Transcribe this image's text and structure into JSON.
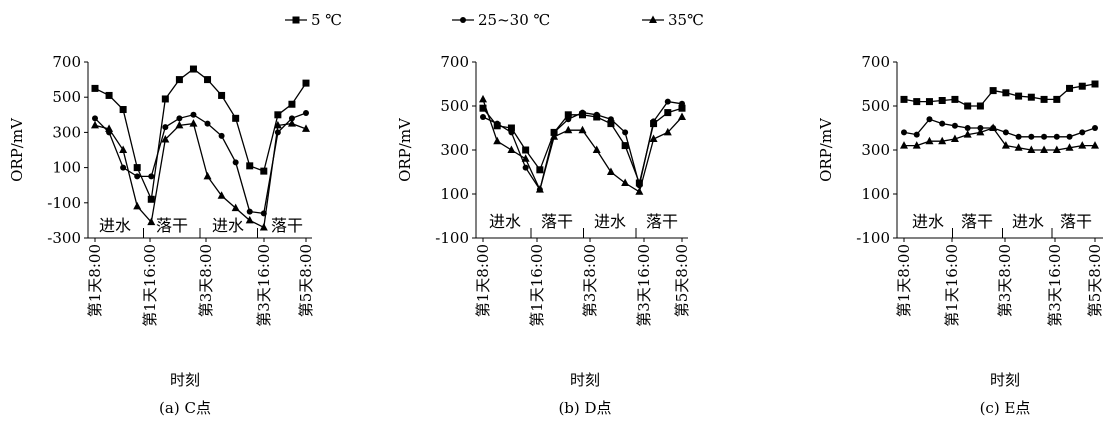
{
  "legend": [
    {
      "name": "5 ℃",
      "marker": "square"
    },
    {
      "name": "25~30 ℃",
      "marker": "circle"
    },
    {
      "name": "35℃",
      "marker": "triangle"
    }
  ],
  "chart_data": [
    {
      "type": "line",
      "caption": "(a) C点",
      "ylabel": "ORP/mV",
      "xlabel": "时刻",
      "ylim": [
        -300,
        700
      ],
      "yticks": [
        700,
        500,
        300,
        100,
        -100,
        -300
      ],
      "x_tick_labels": [
        "第1天8:00",
        "第1天16:00",
        "第3天8:00",
        "第3天16:00",
        "第5天8:00"
      ],
      "phases": [
        "进水",
        "落干",
        "进水",
        "落干"
      ],
      "series": [
        {
          "name": "5 ℃",
          "values": [
            550,
            510,
            430,
            100,
            -80,
            490,
            600,
            660,
            600,
            510,
            380,
            110,
            80,
            400,
            460,
            580
          ]
        },
        {
          "name": "25~30 ℃",
          "values": [
            380,
            300,
            100,
            50,
            50,
            330,
            380,
            400,
            350,
            280,
            130,
            -150,
            -160,
            300,
            380,
            410
          ]
        },
        {
          "name": "35℃",
          "values": [
            340,
            320,
            200,
            -120,
            -210,
            260,
            340,
            350,
            50,
            -60,
            -130,
            -200,
            -240,
            340,
            350,
            320
          ]
        }
      ]
    },
    {
      "type": "line",
      "caption": "(b) D点",
      "ylabel": "ORP/mV",
      "xlabel": "时刻",
      "ylim": [
        -100,
        700
      ],
      "yticks": [
        700,
        500,
        300,
        100,
        -100
      ],
      "x_tick_labels": [
        "第1天8:00",
        "第1天16:00",
        "第3天8:00",
        "第3天16:00",
        "第5天8:00"
      ],
      "phases": [
        "进水",
        "落干",
        "进水",
        "落干"
      ],
      "series": [
        {
          "name": "5 ℃",
          "values": [
            490,
            410,
            400,
            300,
            210,
            380,
            460,
            460,
            450,
            420,
            320,
            150,
            420,
            470,
            490
          ]
        },
        {
          "name": "25~30 ℃",
          "values": [
            450,
            420,
            380,
            220,
            120,
            380,
            440,
            470,
            460,
            440,
            380,
            140,
            430,
            520,
            510
          ]
        },
        {
          "name": "35℃",
          "values": [
            530,
            340,
            300,
            260,
            120,
            360,
            390,
            390,
            300,
            200,
            150,
            110,
            350,
            380,
            450
          ]
        }
      ]
    },
    {
      "type": "line",
      "caption": "(c) E点",
      "ylabel": "ORP/mV",
      "xlabel": "时刻",
      "ylim": [
        -100,
        700
      ],
      "yticks": [
        700,
        500,
        300,
        100,
        -100
      ],
      "x_tick_labels": [
        "第1天8:00",
        "第1天16:00",
        "第3天8:00",
        "第3天16:00",
        "第5天8:00"
      ],
      "phases": [
        "进水",
        "落干",
        "进水",
        "落干"
      ],
      "series": [
        {
          "name": "5 ℃",
          "values": [
            530,
            520,
            520,
            525,
            530,
            500,
            500,
            570,
            560,
            545,
            540,
            530,
            530,
            580,
            590,
            600
          ]
        },
        {
          "name": "25~30 ℃",
          "values": [
            380,
            370,
            440,
            420,
            410,
            400,
            400,
            400,
            380,
            360,
            360,
            360,
            360,
            360,
            380,
            400
          ]
        },
        {
          "name": "35℃",
          "values": [
            320,
            320,
            340,
            340,
            350,
            370,
            380,
            400,
            320,
            310,
            300,
            300,
            300,
            310,
            320,
            320
          ]
        }
      ]
    }
  ]
}
